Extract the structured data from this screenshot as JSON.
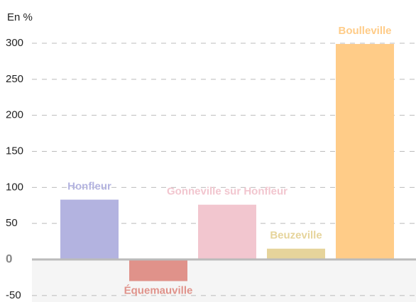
{
  "chart_data": {
    "type": "bar",
    "y_label": "En %",
    "categories": [
      "Honfleur",
      "Équemauville",
      "Gonneville sur Honfleur",
      "Beuzeville",
      "Boulleville"
    ],
    "values": [
      83,
      -30,
      76,
      15,
      299
    ],
    "colors": [
      "#b3b3e0",
      "#e0928a",
      "#f2c6cf",
      "#e6d49b",
      "#ffcc88"
    ],
    "ylim": [
      -59,
      360
    ],
    "yticks": [
      -50,
      0,
      50,
      100,
      150,
      200,
      250,
      300
    ],
    "grid": true
  }
}
